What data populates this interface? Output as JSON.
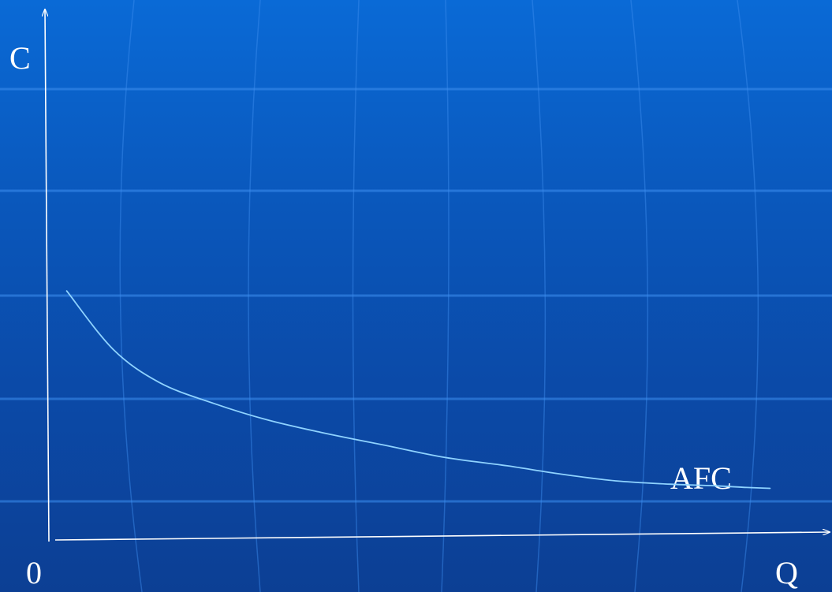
{
  "chart_data": {
    "type": "line",
    "title": "",
    "ylabel": "C",
    "xlabel": "Q",
    "origin_label": "0",
    "grid": false,
    "series": [
      {
        "name": "AFC",
        "color": "#8fd3ff",
        "x": [
          0.2,
          0.8,
          1.4,
          2.1,
          2.8,
          3.5,
          4.3,
          5.1,
          5.9,
          6.6,
          7.3,
          8.0,
          8.6,
          9.0,
          9.3
        ],
        "y": [
          3.0,
          2.3,
          1.9,
          1.65,
          1.45,
          1.3,
          1.15,
          1.0,
          0.9,
          0.8,
          0.72,
          0.68,
          0.66,
          0.64,
          0.63
        ]
      }
    ],
    "xlim": [
      0,
      10
    ],
    "ylim": [
      0,
      6.4
    ]
  },
  "colors": {
    "background_top": "#0a6ad6",
    "background_bottom": "#0c3f94",
    "axis": "#ffffff",
    "grid_lines": "#3d8ff0"
  }
}
